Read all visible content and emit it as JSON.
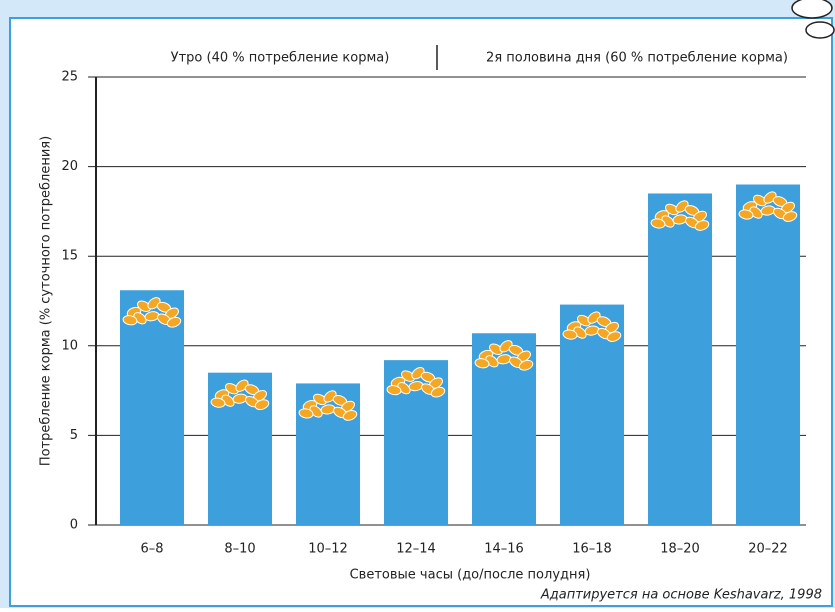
{
  "chart_data": {
    "type": "bar",
    "annotations": [
      "Утро (40 % потребление корма)",
      "2я половина дня (60 % потребление корма)"
    ],
    "categories": [
      "6–8",
      "8–10",
      "10–12",
      "12–14",
      "14–16",
      "16–18",
      "18–20",
      "20–22"
    ],
    "values": [
      13.1,
      8.5,
      7.9,
      9.2,
      10.7,
      12.3,
      18.5,
      19.0
    ],
    "color": "#3d9fdc",
    "ylim": [
      0,
      25
    ],
    "yticks": [
      0,
      5,
      10,
      15,
      20,
      25
    ],
    "grid": true,
    "x_label": "Световые часы (до/после полудня)",
    "y_label": "Потребление корма (% суточного потребления)",
    "source": "Адаптируется на основе  Keshavarz, 1998"
  }
}
